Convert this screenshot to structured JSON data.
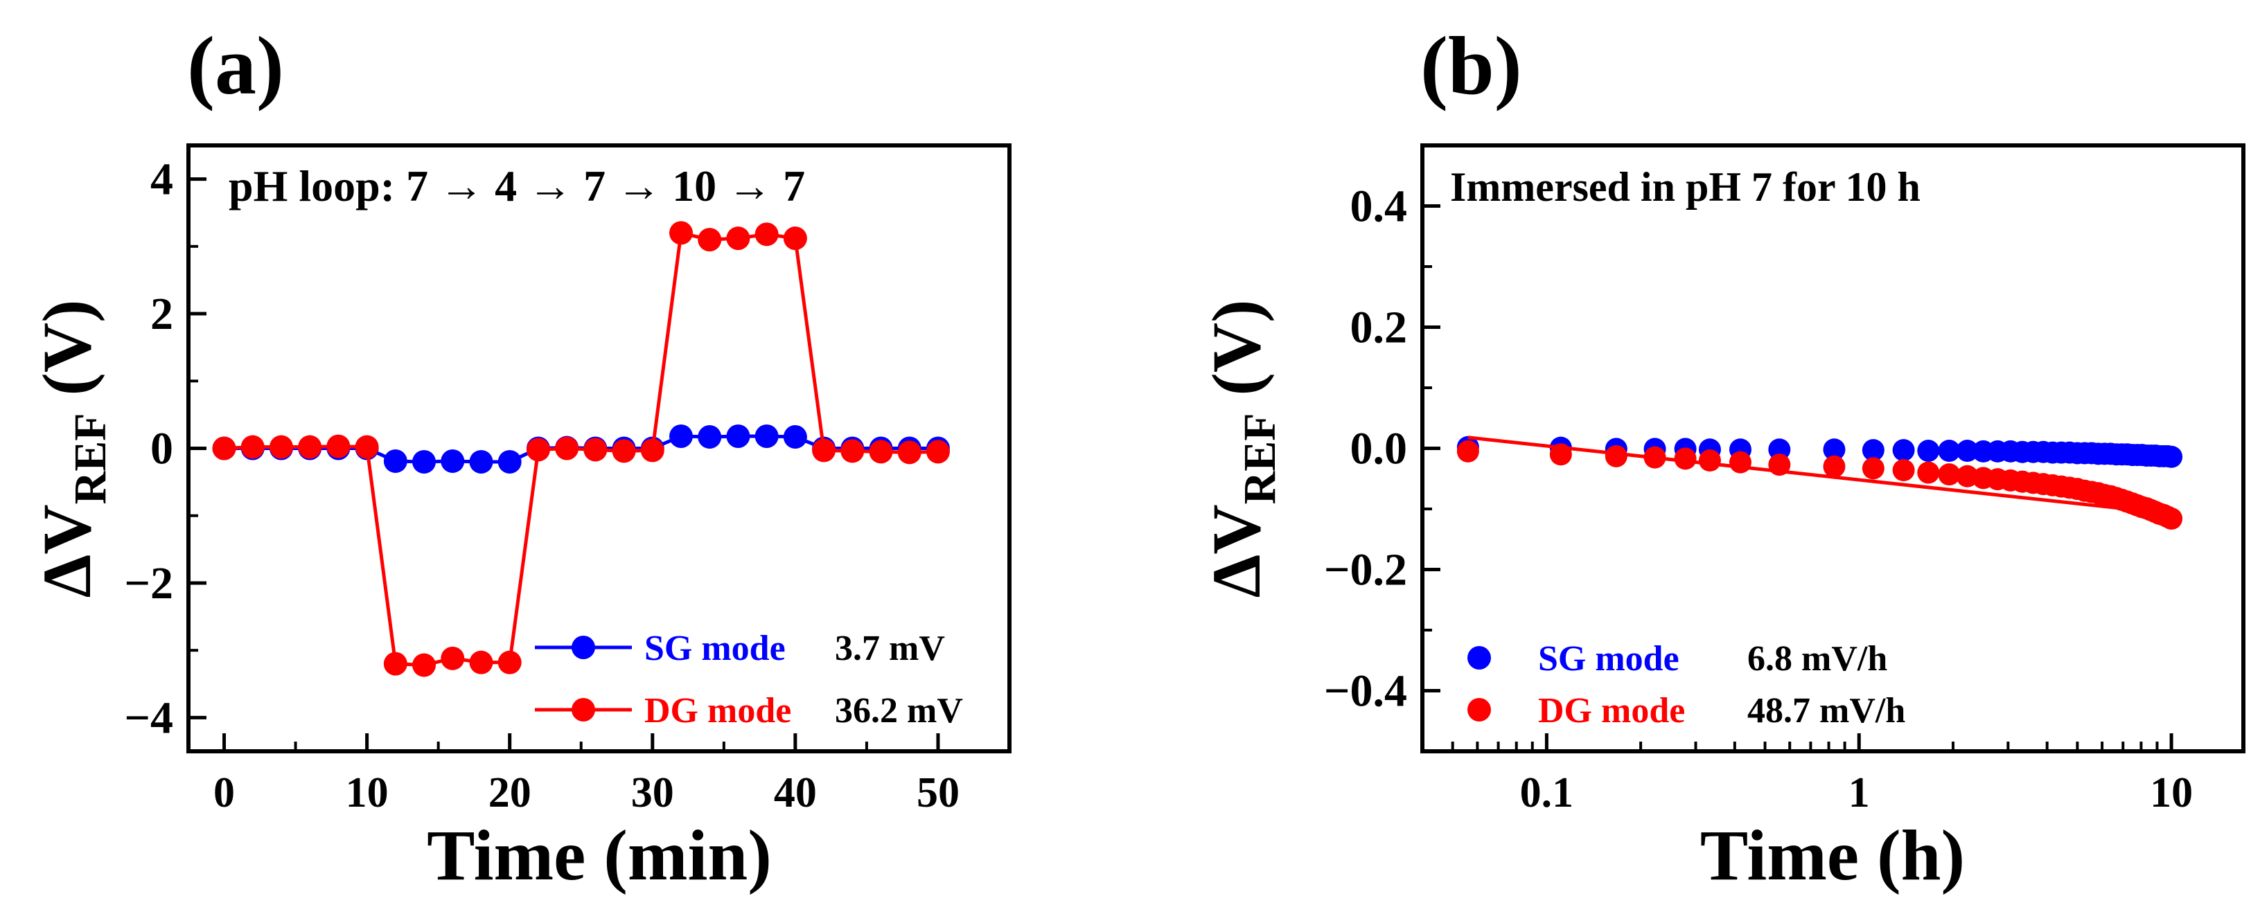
{
  "chart_data": [
    {
      "panel_label": "(a)",
      "type": "line",
      "annotation": "pH loop: 7 → 4 → 7 → 10 → 7",
      "xlabel": "Time (min)",
      "ylabel_main": "ΔV",
      "ylabel_sub": "REF",
      "ylabel_unit": "(V)",
      "xlim": [
        -2.5,
        55
      ],
      "ylim": [
        -4.5,
        4.5
      ],
      "xticks": [
        0,
        10,
        20,
        30,
        40,
        50
      ],
      "yticks": [
        -4,
        -2,
        0,
        2,
        4
      ],
      "ytick_labels": [
        "−4",
        "−2",
        "0",
        "2",
        "4"
      ],
      "legend_position": "bottom-right",
      "series": [
        {
          "name": "SG mode",
          "legend_value": "3.7 mV",
          "color": "#0000ff",
          "x": [
            0,
            2,
            4,
            6,
            8,
            10,
            12,
            14,
            16,
            18,
            20,
            22,
            24,
            26,
            28,
            30,
            32,
            34,
            36,
            38,
            40,
            42,
            44,
            46,
            48,
            50
          ],
          "y": [
            0,
            0,
            0,
            0,
            0,
            0,
            -0.19,
            -0.2,
            -0.19,
            -0.2,
            -0.2,
            0,
            0.01,
            0,
            0,
            0,
            0.18,
            0.17,
            0.18,
            0.18,
            0.17,
            0,
            0,
            0,
            0,
            0
          ]
        },
        {
          "name": "DG mode",
          "legend_value": "36.2 mV",
          "color": "#ff0000",
          "x": [
            0,
            2,
            4,
            6,
            8,
            10,
            12,
            14,
            16,
            18,
            20,
            22,
            24,
            26,
            28,
            30,
            32,
            34,
            36,
            38,
            40,
            42,
            44,
            46,
            48,
            50
          ],
          "y": [
            0,
            0.02,
            0.02,
            0.02,
            0.03,
            0.02,
            -3.2,
            -3.22,
            -3.12,
            -3.18,
            -3.18,
            -0.02,
            0,
            -0.02,
            -0.04,
            -0.03,
            3.2,
            3.1,
            3.12,
            3.18,
            3.12,
            -0.03,
            -0.04,
            -0.05,
            -0.06,
            -0.05
          ]
        }
      ]
    },
    {
      "panel_label": "(b)",
      "type": "scatter",
      "annotation": "Immersed in pH 7 for 10 h",
      "xlabel": "Time (h)",
      "ylabel_main": "ΔV",
      "ylabel_sub": "REF",
      "ylabel_unit": "(V)",
      "xscale": "log",
      "xlim": [
        0.04,
        17
      ],
      "ylim": [
        -0.5,
        0.5
      ],
      "xticks": [
        0.1,
        1,
        10
      ],
      "xtick_labels": [
        "0.1",
        "1",
        "10"
      ],
      "yticks": [
        -0.4,
        -0.2,
        0.0,
        0.2,
        0.4
      ],
      "ytick_labels": [
        "−0.4",
        "−0.2",
        "0.0",
        "0.2",
        "0.4"
      ],
      "legend_position": "bottom-left",
      "series": [
        {
          "name": "SG mode",
          "legend_value": "6.8 mV/h",
          "color": "#0000ff",
          "x": [
            0.056,
            0.111,
            0.167,
            0.222,
            0.278,
            0.333,
            0.417,
            0.556,
            0.833,
            1.111,
            1.389,
            1.667,
            1.944,
            2.222,
            2.5,
            2.778,
            3.056,
            3.333,
            3.611,
            3.889,
            4.167,
            4.444,
            4.722,
            5,
            5.278,
            5.556,
            5.833,
            6.111,
            6.389,
            6.667,
            6.944,
            7.222,
            7.5,
            7.778,
            8.056,
            8.333,
            8.611,
            8.889,
            9.167,
            9.444,
            9.722,
            10
          ],
          "y": [
            0.002,
            0.001,
            -0.001,
            -0.001,
            -0.001,
            -0.002,
            -0.002,
            -0.002,
            -0.002,
            -0.003,
            -0.003,
            -0.004,
            -0.004,
            -0.004,
            -0.005,
            -0.005,
            -0.005,
            -0.006,
            -0.006,
            -0.006,
            -0.007,
            -0.007,
            -0.007,
            -0.008,
            -0.008,
            -0.008,
            -0.009,
            -0.009,
            -0.009,
            -0.01,
            -0.01,
            -0.01,
            -0.011,
            -0.011,
            -0.011,
            -0.012,
            -0.012,
            -0.012,
            -0.013,
            -0.013,
            -0.013,
            -0.014
          ]
        },
        {
          "name": "DG mode",
          "legend_value": "48.7 mV/h",
          "color": "#ff0000",
          "fit": {
            "x": [
              0.056,
              10
            ],
            "y": [
              0.018,
              -0.108
            ]
          },
          "x": [
            0.056,
            0.111,
            0.167,
            0.222,
            0.278,
            0.333,
            0.417,
            0.556,
            0.833,
            1.111,
            1.389,
            1.667,
            1.944,
            2.222,
            2.5,
            2.778,
            3.056,
            3.333,
            3.611,
            3.889,
            4.167,
            4.444,
            4.722,
            5,
            5.278,
            5.556,
            5.833,
            6.111,
            6.389,
            6.667,
            6.944,
            7.222,
            7.5,
            7.778,
            8.056,
            8.333,
            8.611,
            8.889,
            9.167,
            9.444,
            9.722,
            10
          ],
          "y": [
            -0.005,
            -0.01,
            -0.013,
            -0.015,
            -0.017,
            -0.02,
            -0.023,
            -0.027,
            -0.03,
            -0.033,
            -0.036,
            -0.04,
            -0.043,
            -0.046,
            -0.049,
            -0.051,
            -0.053,
            -0.055,
            -0.057,
            -0.059,
            -0.061,
            -0.063,
            -0.065,
            -0.067,
            -0.07,
            -0.072,
            -0.074,
            -0.077,
            -0.079,
            -0.082,
            -0.085,
            -0.088,
            -0.091,
            -0.094,
            -0.097,
            -0.099,
            -0.102,
            -0.105,
            -0.108,
            -0.11,
            -0.113,
            -0.116
          ]
        }
      ]
    }
  ]
}
